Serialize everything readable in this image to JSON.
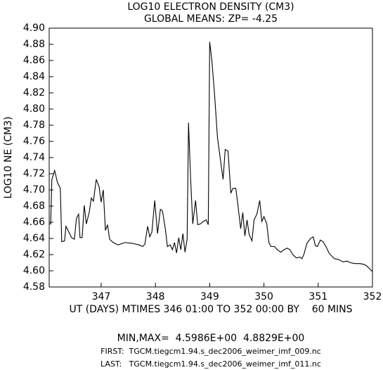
{
  "chart_data": {
    "type": "line",
    "title": "LOG10 ELECTRON DENSITY (CM3)",
    "subtitle": "GLOBAL MEANS: ZP= -4.25",
    "y_label": "LOG10 NE (CM3)",
    "x_label": "UT (DAYS) MTIMES 346 01:00 TO 352 00:00 BY    60 MINS",
    "annotations": [
      "MIN,MAX=  4.5986E+00  4.8829E+00",
      "FIRST:  TGCM.tiegcm1.94.s_dec2006_weimer_imf_009.nc",
      "LAST:   TGCM.tiegcm1.94.s_dec2006_weimer_imf_011.nc"
    ],
    "color": "#000000",
    "x": [
      346.042,
      346.07,
      346.091,
      346.143,
      346.195,
      346.247,
      346.273,
      346.325,
      346.351,
      346.403,
      346.455,
      346.506,
      346.545,
      346.584,
      346.61,
      346.649,
      346.688,
      346.727,
      346.779,
      346.818,
      346.857,
      346.909,
      346.961,
      347.0,
      347.039,
      347.078,
      347.117,
      347.156,
      347.221,
      347.312,
      347.442,
      347.571,
      347.701,
      347.766,
      347.805,
      347.857,
      347.896,
      347.935,
      347.987,
      348.039,
      348.091,
      348.13,
      348.182,
      348.221,
      348.273,
      348.312,
      348.351,
      348.39,
      348.429,
      348.468,
      348.506,
      348.545,
      348.584,
      348.61,
      348.649,
      348.688,
      348.74,
      348.779,
      348.831,
      348.883,
      348.935,
      348.974,
      349.0,
      349.039,
      349.091,
      349.143,
      349.195,
      349.247,
      349.286,
      349.338,
      349.39,
      349.429,
      349.481,
      349.519,
      349.571,
      349.61,
      349.649,
      349.688,
      349.727,
      349.779,
      349.818,
      349.87,
      349.922,
      349.961,
      350.0,
      350.052,
      350.091,
      350.13,
      350.195,
      350.247,
      350.312,
      350.364,
      350.429,
      350.481,
      350.532,
      350.597,
      350.662,
      350.701,
      350.74,
      350.792,
      350.857,
      350.909,
      350.948,
      350.987,
      351.039,
      351.091,
      351.143,
      351.208,
      351.299,
      351.377,
      351.455,
      351.532,
      351.597,
      351.675,
      351.766,
      351.844,
      351.896,
      352.0
    ],
    "values": [
      4.658,
      4.658,
      4.713,
      4.724,
      4.709,
      4.702,
      4.636,
      4.637,
      4.655,
      4.648,
      4.641,
      4.639,
      4.665,
      4.67,
      4.641,
      4.641,
      4.681,
      4.658,
      4.672,
      4.69,
      4.686,
      4.713,
      4.704,
      4.685,
      4.7,
      4.65,
      4.657,
      4.639,
      4.635,
      4.632,
      4.635,
      4.634,
      4.632,
      4.63,
      4.633,
      4.655,
      4.642,
      4.648,
      4.687,
      4.646,
      4.676,
      4.674,
      4.652,
      4.63,
      4.632,
      4.626,
      4.635,
      4.622,
      4.641,
      4.626,
      4.646,
      4.623,
      4.639,
      4.783,
      4.713,
      4.658,
      4.687,
      4.657,
      4.658,
      4.661,
      4.663,
      4.657,
      4.883,
      4.861,
      4.817,
      4.765,
      4.739,
      4.713,
      4.75,
      4.748,
      4.696,
      4.702,
      4.702,
      4.682,
      4.652,
      4.672,
      4.643,
      4.663,
      4.645,
      4.637,
      4.663,
      4.67,
      4.687,
      4.661,
      4.667,
      4.658,
      4.635,
      4.63,
      4.63,
      4.626,
      4.623,
      4.626,
      4.628,
      4.626,
      4.62,
      4.616,
      4.617,
      4.615,
      4.621,
      4.634,
      4.64,
      4.642,
      4.631,
      4.63,
      4.638,
      4.636,
      4.63,
      4.621,
      4.615,
      4.614,
      4.611,
      4.612,
      4.61,
      4.609,
      4.609,
      4.608,
      4.606,
      4.599
    ],
    "xlim": [
      346.042,
      352
    ],
    "xticks": [
      347,
      348,
      349,
      350,
      351,
      352
    ],
    "ylim": [
      4.58,
      4.9
    ],
    "yticks": [
      4.58,
      {
        "value": 4.6,
        "label": "4.60"
      },
      4.62,
      4.64,
      4.66,
      4.68,
      {
        "value": 4.7,
        "label": "4.70"
      },
      4.72,
      4.74,
      4.76,
      4.78,
      {
        "value": 4.8,
        "label": "4.80"
      },
      4.82,
      4.84,
      4.86,
      4.88,
      {
        "value": 4.9,
        "label": "4.90"
      }
    ]
  }
}
